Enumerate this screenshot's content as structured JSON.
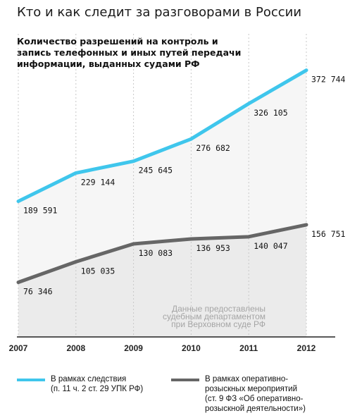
{
  "page": {
    "title": "Кто и как следит за разговорами в России"
  },
  "chart_data": {
    "type": "line",
    "title": "Количество разрешений на контроль и запись телефонных и иных путей передачи информации, выданных судами РФ",
    "categories": [
      "2007",
      "2008",
      "2009",
      "2010",
      "2011",
      "2012"
    ],
    "ylim": [
      0,
      400000
    ],
    "grid": true,
    "legend_position": "bottom",
    "series": [
      {
        "name": "В рамках следствия (п. 11 ч. 2 ст. 29 УПК РФ)",
        "values": [
          189591,
          229144,
          245645,
          276682,
          326105,
          372744
        ],
        "labels": [
          "189 591",
          "229 144",
          "245 645",
          "276 682",
          "326 105",
          "372 744"
        ],
        "color": "#3fc6ec"
      },
      {
        "name": "В рамках оперативно-розыскных мероприятий (ст. 9 ФЗ «Об оперативно-розыскной деятельности»)",
        "values": [
          76346,
          105035,
          130083,
          136953,
          140047,
          156751
        ],
        "labels": [
          "76 346",
          "105 035",
          "130 083",
          "136 953",
          "140 047",
          "156 751"
        ],
        "color": "#666666"
      }
    ],
    "annotation": [
      "Данные предоставлены",
      "судебным департаментом",
      "при Верховном суде РФ"
    ]
  },
  "legend": {
    "items": [
      {
        "line1": "В рамках следствия",
        "line2": "(п. 11 ч. 2 ст. 29 УПК РФ)",
        "color": "#3fc6ec"
      },
      {
        "line1": "В рамках оперативно-",
        "line2": "розыскных мероприятий",
        "line3": "(ст. 9 ФЗ «Об оперативно-",
        "line4": "розыскной деятельности»)",
        "color": "#666666"
      }
    ]
  }
}
